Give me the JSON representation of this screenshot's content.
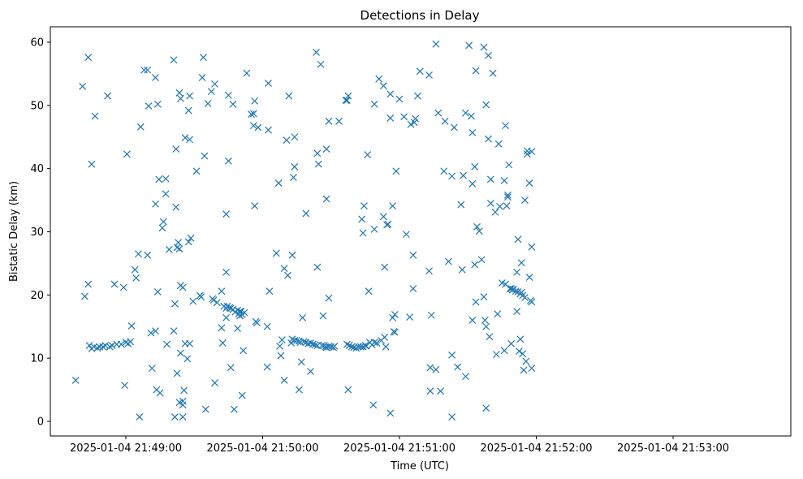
{
  "chart_data": {
    "type": "scatter",
    "title": "Detections in Delay",
    "xlabel": "Time (UTC)",
    "ylabel": "Bistatic Delay (km)",
    "x_ticks": [
      "2025-01-04 21:49:00",
      "2025-01-04 21:50:00",
      "2025-01-04 21:51:00",
      "2025-01-04 21:52:00",
      "2025-01-04 21:53:00"
    ],
    "y_ticks": [
      0,
      10,
      20,
      30,
      40,
      50,
      60
    ],
    "xlim": [
      "2025-01-04 21:48:35",
      "2025-01-04 21:53:50"
    ],
    "ylim": [
      -2.5,
      63
    ],
    "grid": false,
    "marker": "x",
    "color": "#1f77b4",
    "x_start": "2025-01-04 21:48:00",
    "points_note": "x values are seconds after 21:48:00 UTC",
    "points": [
      [
        38,
        6.5
      ],
      [
        41,
        53
      ],
      [
        42,
        19.8
      ],
      [
        43.5,
        57.6
      ],
      [
        43.5,
        21.7
      ],
      [
        44,
        12
      ],
      [
        45,
        40.7
      ],
      [
        45,
        11.5
      ],
      [
        46,
        11.8
      ],
      [
        46.5,
        48.3
      ],
      [
        47.5,
        11.6
      ],
      [
        48.5,
        11.8
      ],
      [
        50,
        11.8
      ],
      [
        51,
        12
      ],
      [
        52,
        51.5
      ],
      [
        53,
        11.8
      ],
      [
        54,
        12
      ],
      [
        55,
        21.7
      ],
      [
        56,
        12.2
      ],
      [
        58,
        12.2
      ],
      [
        59,
        21.2
      ],
      [
        59.5,
        5.7
      ],
      [
        60,
        12.5
      ],
      [
        60.5,
        42.3
      ],
      [
        61,
        12.3
      ],
      [
        62,
        12.6
      ],
      [
        62.5,
        15.1
      ],
      [
        64,
        24
      ],
      [
        64.5,
        22.7
      ],
      [
        65.5,
        26.5
      ],
      [
        66,
        0.7
      ],
      [
        66.5,
        46.6
      ],
      [
        68,
        55.6
      ],
      [
        69.5,
        26.3
      ],
      [
        69.5,
        55.6
      ],
      [
        70,
        49.9
      ],
      [
        71,
        14
      ],
      [
        71.5,
        8.4
      ],
      [
        73,
        54.4
      ],
      [
        73,
        34.4
      ],
      [
        73,
        14.3
      ],
      [
        73.5,
        5
      ],
      [
        74,
        50.2
      ],
      [
        74,
        20.5
      ],
      [
        74.5,
        38.3
      ],
      [
        75,
        4.5
      ],
      [
        76,
        30.6
      ],
      [
        76.5,
        31.6
      ],
      [
        77.5,
        38.4
      ],
      [
        77.5,
        36
      ],
      [
        78,
        12.2
      ],
      [
        79,
        27.2
      ],
      [
        81,
        57.2
      ],
      [
        81,
        14.3
      ],
      [
        81.5,
        0.7
      ],
      [
        81.5,
        18.6
      ],
      [
        82,
        43.1
      ],
      [
        82,
        33.9
      ],
      [
        82.5,
        27.5
      ],
      [
        82.5,
        7.6
      ],
      [
        83,
        28.3
      ],
      [
        83.5,
        52
      ],
      [
        83.5,
        27.3
      ],
      [
        83.5,
        3
      ],
      [
        84,
        51.1
      ],
      [
        84,
        21.5
      ],
      [
        84,
        10.8
      ],
      [
        85,
        21.2
      ],
      [
        85,
        2.6
      ],
      [
        85,
        3.2
      ],
      [
        85,
        0.7
      ],
      [
        85.5,
        4.9
      ],
      [
        86,
        44.9
      ],
      [
        86,
        12.3
      ],
      [
        87,
        9.9
      ],
      [
        87.5,
        49.2
      ],
      [
        87.5,
        28.4
      ],
      [
        88,
        51.5
      ],
      [
        88,
        44.6
      ],
      [
        88,
        12.3
      ],
      [
        88.5,
        29
      ],
      [
        89.5,
        19
      ],
      [
        91,
        39.6
      ],
      [
        92.5,
        19.9
      ],
      [
        93,
        19.7
      ],
      [
        93.5,
        54.4
      ],
      [
        94,
        57.6
      ],
      [
        94.5,
        42
      ],
      [
        95,
        1.9
      ],
      [
        96,
        50.3
      ],
      [
        97.5,
        52.2
      ],
      [
        98,
        19.4
      ],
      [
        98.5,
        19.2
      ],
      [
        99,
        53.4
      ],
      [
        99,
        6.1
      ],
      [
        100,
        18.8
      ],
      [
        102,
        20.6
      ],
      [
        102,
        14.8
      ],
      [
        102.5,
        12.4
      ],
      [
        103,
        18.2
      ],
      [
        104,
        17.9
      ],
      [
        104,
        32.8
      ],
      [
        104,
        23.6
      ],
      [
        104,
        16.4
      ],
      [
        104.5,
        18.2
      ],
      [
        105,
        51.6
      ],
      [
        105,
        41.2
      ],
      [
        105.5,
        18
      ],
      [
        106,
        17.9
      ],
      [
        106,
        8.5
      ],
      [
        107,
        50.2
      ],
      [
        107,
        17.7
      ],
      [
        107.5,
        1.9
      ],
      [
        108,
        17.3
      ],
      [
        109,
        17.6
      ],
      [
        109,
        14.7
      ],
      [
        109.5,
        17
      ],
      [
        110,
        16.7
      ],
      [
        110,
        17.4
      ],
      [
        110.5,
        17.4
      ],
      [
        111,
        16.9
      ],
      [
        111,
        4.1
      ],
      [
        111.5,
        11.2
      ],
      [
        112,
        17.2
      ],
      [
        113,
        55.1
      ],
      [
        115,
        48.6
      ],
      [
        116,
        48.7
      ],
      [
        116,
        46.8
      ],
      [
        116.5,
        50.7
      ],
      [
        116.5,
        34.1
      ],
      [
        117,
        15.8
      ],
      [
        117.5,
        15.6
      ],
      [
        118,
        46.5
      ],
      [
        122,
        8.6
      ],
      [
        122,
        15
      ],
      [
        122.5,
        53.5
      ],
      [
        122.5,
        46.1
      ],
      [
        123,
        20.6
      ],
      [
        126,
        26.6
      ],
      [
        127,
        37.7
      ],
      [
        127.5,
        11.9
      ],
      [
        128,
        10.4
      ],
      [
        128.5,
        12.9
      ],
      [
        129.5,
        6.5
      ],
      [
        129.5,
        24.2
      ],
      [
        130.5,
        44.5
      ],
      [
        131,
        23.1
      ],
      [
        131.5,
        51.5
      ],
      [
        132.5,
        12.4
      ],
      [
        133,
        26.3
      ],
      [
        133,
        13
      ],
      [
        133.5,
        38.6
      ],
      [
        134,
        45
      ],
      [
        134,
        12.8
      ],
      [
        134,
        40.3
      ],
      [
        135,
        12.8
      ],
      [
        136,
        12.7
      ],
      [
        136,
        5
      ],
      [
        136.5,
        12.5
      ],
      [
        137,
        9.4
      ],
      [
        137.5,
        16.4
      ],
      [
        138,
        12.6
      ],
      [
        139,
        12.5
      ],
      [
        139,
        32.9
      ],
      [
        140,
        12.3
      ],
      [
        141,
        12.4
      ],
      [
        141,
        7.9
      ],
      [
        142,
        12.2
      ],
      [
        143,
        12.1
      ],
      [
        143.5,
        58.4
      ],
      [
        144,
        12
      ],
      [
        144,
        24.4
      ],
      [
        144,
        42.4
      ],
      [
        144.5,
        40.7
      ],
      [
        145.5,
        56.5
      ],
      [
        146,
        12
      ],
      [
        146.5,
        16.7
      ],
      [
        147,
        12
      ],
      [
        147.5,
        11.8
      ],
      [
        148,
        43.1
      ],
      [
        148,
        35.2
      ],
      [
        148,
        11.7
      ],
      [
        149,
        47.5
      ],
      [
        149,
        19.5
      ],
      [
        149,
        11.8
      ],
      [
        150,
        11.8
      ],
      [
        151,
        11.7
      ],
      [
        151.5,
        11.9
      ],
      [
        153.5,
        47.5
      ],
      [
        156.5,
        50.8
      ],
      [
        157,
        50.8
      ],
      [
        157,
        12.2
      ],
      [
        157.5,
        51.5
      ],
      [
        157.5,
        5
      ],
      [
        158,
        12
      ],
      [
        159,
        11.8
      ],
      [
        160,
        11.7
      ],
      [
        161,
        11.6
      ],
      [
        162,
        11.8
      ],
      [
        163,
        11.8
      ],
      [
        163.5,
        32
      ],
      [
        164,
        29.8
      ],
      [
        164,
        11.8
      ],
      [
        164.5,
        34.1
      ],
      [
        165,
        12
      ],
      [
        165.5,
        11.9
      ],
      [
        166,
        42.2
      ],
      [
        166.5,
        20.6
      ],
      [
        167,
        12.5
      ],
      [
        168,
        12.1
      ],
      [
        168.5,
        2.6
      ],
      [
        169,
        50.2
      ],
      [
        169,
        30.4
      ],
      [
        169,
        12.5
      ],
      [
        170,
        12.4
      ],
      [
        171,
        54.2
      ],
      [
        172,
        12.8
      ],
      [
        173,
        32.4
      ],
      [
        173,
        53.1
      ],
      [
        173.5,
        24.4
      ],
      [
        173.5,
        13.3
      ],
      [
        174,
        11.8
      ],
      [
        174.5,
        31.1
      ],
      [
        175,
        31.2
      ],
      [
        176,
        1.3
      ],
      [
        176,
        51.8
      ],
      [
        176,
        48
      ],
      [
        177,
        16.4
      ],
      [
        177,
        34.1
      ],
      [
        177.5,
        14.2
      ],
      [
        178,
        14.1
      ],
      [
        178,
        16.9
      ],
      [
        178.5,
        39.6
      ],
      [
        180,
        51
      ],
      [
        182,
        48.2
      ],
      [
        183,
        29.6
      ],
      [
        184.5,
        16.5
      ],
      [
        185,
        47
      ],
      [
        186,
        26.3
      ],
      [
        186,
        21
      ],
      [
        186.5,
        47.3
      ],
      [
        187,
        47.9
      ],
      [
        188,
        51.5
      ],
      [
        189,
        55.4
      ],
      [
        193,
        54.8
      ],
      [
        193,
        23.8
      ],
      [
        193.5,
        8.5
      ],
      [
        193.5,
        4.8
      ],
      [
        194,
        16.8
      ],
      [
        196,
        59.7
      ],
      [
        196,
        8.2
      ],
      [
        197,
        48.8
      ],
      [
        198,
        4.8
      ],
      [
        199.5,
        39.6
      ],
      [
        200,
        47.5
      ],
      [
        201.5,
        25.3
      ],
      [
        203,
        38.8
      ],
      [
        203,
        10.5
      ],
      [
        203,
        0.7
      ],
      [
        204,
        46.5
      ],
      [
        205.5,
        8.6
      ],
      [
        207,
        34.3
      ],
      [
        207.5,
        24
      ],
      [
        208,
        38.9
      ],
      [
        209,
        7.1
      ],
      [
        209,
        48.8
      ],
      [
        210.5,
        59.5
      ],
      [
        211.5,
        48.3
      ],
      [
        212,
        45.7
      ],
      [
        212,
        37.6
      ],
      [
        212,
        16
      ],
      [
        213,
        40.3
      ],
      [
        213,
        24.8
      ],
      [
        213.5,
        18.9
      ],
      [
        213.5,
        55.5
      ],
      [
        214,
        30.8
      ],
      [
        215,
        30.1
      ],
      [
        216,
        25.6
      ],
      [
        217,
        59.2
      ],
      [
        217,
        19.7
      ],
      [
        217.5,
        16
      ],
      [
        218,
        15
      ],
      [
        218,
        2.1
      ],
      [
        218,
        50.1
      ],
      [
        219,
        57.9
      ],
      [
        219,
        44.7
      ],
      [
        219.5,
        13.4
      ],
      [
        220,
        34.5
      ],
      [
        220,
        38.3
      ],
      [
        221,
        55.1
      ],
      [
        222,
        33.1
      ],
      [
        222.5,
        10.6
      ],
      [
        223,
        17
      ],
      [
        223.5,
        43.9
      ],
      [
        224,
        34
      ],
      [
        225,
        21.9
      ],
      [
        226,
        38.1
      ],
      [
        226,
        11.2
      ],
      [
        226.5,
        21.7
      ],
      [
        226.5,
        46.8
      ],
      [
        227,
        34.1
      ],
      [
        227.5,
        35.8
      ],
      [
        227.5,
        35.5
      ],
      [
        228,
        40.6
      ],
      [
        228.5,
        21
      ],
      [
        229,
        21
      ],
      [
        229,
        12.3
      ],
      [
        229.5,
        20.8
      ],
      [
        230,
        20.9
      ],
      [
        231,
        20.6
      ],
      [
        231.5,
        23.6
      ],
      [
        231.5,
        17.4
      ],
      [
        232,
        20.5
      ],
      [
        232,
        28.8
      ],
      [
        232.5,
        11.1
      ],
      [
        233,
        20.2
      ],
      [
        233,
        13
      ],
      [
        233.5,
        20.4
      ],
      [
        233.5,
        25.1
      ],
      [
        234,
        19.9
      ],
      [
        234,
        10.7
      ],
      [
        234.5,
        8.1
      ],
      [
        235,
        19.6
      ],
      [
        235,
        35
      ],
      [
        235.5,
        9.5
      ],
      [
        236,
        42.3
      ],
      [
        236,
        42.8
      ],
      [
        237,
        22.8
      ],
      [
        237,
        37.7
      ],
      [
        237.5,
        19.1
      ],
      [
        238,
        8.4
      ],
      [
        238,
        18.9
      ],
      [
        238,
        42.7
      ],
      [
        238,
        27.6
      ]
    ]
  }
}
